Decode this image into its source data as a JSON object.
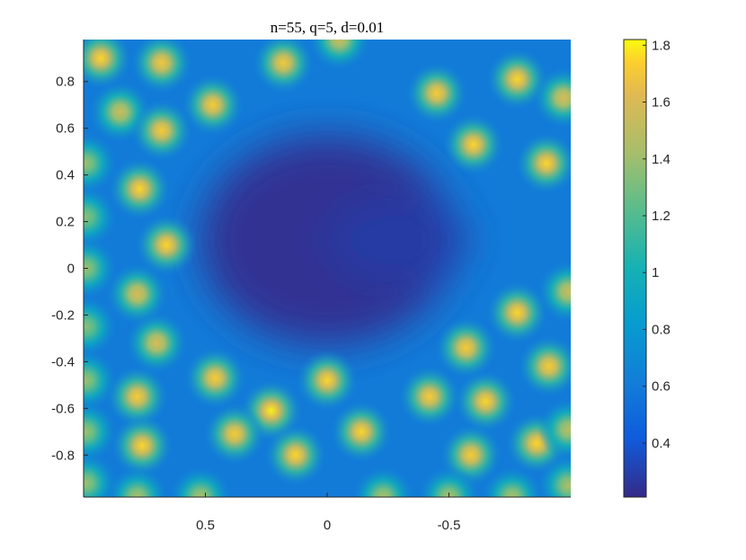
{
  "chart_data": {
    "type": "heatmap",
    "title": "n=55, q=5, d=0.01",
    "xlabel": "",
    "ylabel": "",
    "xlim": [
      1,
      -1
    ],
    "ylim": [
      -0.98,
      0.98
    ],
    "x_reversed": true,
    "grid": false,
    "x_ticks": [
      0.5,
      0,
      -0.5
    ],
    "x_tick_labels": [
      "0.5",
      "0",
      "-0.5"
    ],
    "y_ticks": [
      0.8,
      0.6,
      0.4,
      0.2,
      0,
      -0.2,
      -0.4,
      -0.6,
      -0.8
    ],
    "y_tick_labels": [
      "0.8",
      "0.6",
      "0.4",
      "0.2",
      "0",
      "-0.2",
      "-0.4",
      "-0.6",
      "-0.8"
    ],
    "colormap": "parula",
    "colorbar": {
      "range": [
        0.21,
        1.82
      ],
      "ticks": [
        1.8,
        1.6,
        1.4,
        1.2,
        1,
        0.8,
        0.6,
        0.4
      ],
      "tick_labels": [
        "1.8",
        "1.6",
        "1.4",
        "1.2",
        "1",
        "0.8",
        "0.6",
        "0.4"
      ]
    },
    "background_level": 0.6,
    "central_hole": {
      "x": 0.0,
      "y": 0.12,
      "radius_x": 0.52,
      "radius_y": 0.45,
      "level": 0.22
    },
    "peaks": [
      {
        "x": 0.93,
        "y": 0.9,
        "v": 1.75
      },
      {
        "x": 0.68,
        "y": 0.88,
        "v": 1.7
      },
      {
        "x": 0.18,
        "y": 0.88,
        "v": 1.7
      },
      {
        "x": -0.05,
        "y": 0.98,
        "v": 1.55
      },
      {
        "x": -0.45,
        "y": 0.75,
        "v": 1.72
      },
      {
        "x": -0.78,
        "y": 0.81,
        "v": 1.75
      },
      {
        "x": -0.97,
        "y": 0.73,
        "v": 1.6
      },
      {
        "x": 0.85,
        "y": 0.67,
        "v": 1.55
      },
      {
        "x": 0.47,
        "y": 0.7,
        "v": 1.72
      },
      {
        "x": 0.68,
        "y": 0.59,
        "v": 1.72
      },
      {
        "x": -0.6,
        "y": 0.53,
        "v": 1.75
      },
      {
        "x": -0.9,
        "y": 0.45,
        "v": 1.75
      },
      {
        "x": 0.77,
        "y": 0.34,
        "v": 1.75
      },
      {
        "x": 0.99,
        "y": 0.45,
        "v": 1.4
      },
      {
        "x": 0.66,
        "y": 0.1,
        "v": 1.75
      },
      {
        "x": 0.99,
        "y": 0.22,
        "v": 1.35
      },
      {
        "x": 0.99,
        "y": 0.0,
        "v": 1.4
      },
      {
        "x": 0.78,
        "y": -0.11,
        "v": 1.6
      },
      {
        "x": 0.7,
        "y": -0.32,
        "v": 1.6
      },
      {
        "x": 0.99,
        "y": -0.25,
        "v": 1.35
      },
      {
        "x": -0.78,
        "y": -0.19,
        "v": 1.75
      },
      {
        "x": -0.99,
        "y": -0.1,
        "v": 1.55
      },
      {
        "x": -0.57,
        "y": -0.34,
        "v": 1.72
      },
      {
        "x": -0.91,
        "y": -0.42,
        "v": 1.72
      },
      {
        "x": 0.46,
        "y": -0.47,
        "v": 1.72
      },
      {
        "x": 0.0,
        "y": -0.48,
        "v": 1.75
      },
      {
        "x": 0.78,
        "y": -0.55,
        "v": 1.72
      },
      {
        "x": 0.99,
        "y": -0.48,
        "v": 1.4
      },
      {
        "x": -0.42,
        "y": -0.55,
        "v": 1.72
      },
      {
        "x": -0.65,
        "y": -0.57,
        "v": 1.75
      },
      {
        "x": 0.23,
        "y": -0.61,
        "v": 1.8
      },
      {
        "x": 0.38,
        "y": -0.71,
        "v": 1.72
      },
      {
        "x": -0.14,
        "y": -0.7,
        "v": 1.75
      },
      {
        "x": 0.76,
        "y": -0.76,
        "v": 1.75
      },
      {
        "x": 0.99,
        "y": -0.7,
        "v": 1.4
      },
      {
        "x": 0.13,
        "y": -0.8,
        "v": 1.75
      },
      {
        "x": -0.59,
        "y": -0.8,
        "v": 1.72
      },
      {
        "x": -0.86,
        "y": -0.75,
        "v": 1.75
      },
      {
        "x": -0.99,
        "y": -0.69,
        "v": 1.5
      },
      {
        "x": 0.99,
        "y": -0.92,
        "v": 1.4
      },
      {
        "x": 0.78,
        "y": -0.98,
        "v": 1.45
      },
      {
        "x": 0.52,
        "y": -0.98,
        "v": 1.45
      },
      {
        "x": -0.23,
        "y": -0.98,
        "v": 1.45
      },
      {
        "x": -0.5,
        "y": -0.98,
        "v": 1.45
      },
      {
        "x": -0.76,
        "y": -0.98,
        "v": 1.45
      },
      {
        "x": -0.99,
        "y": -0.93,
        "v": 1.45
      }
    ]
  }
}
